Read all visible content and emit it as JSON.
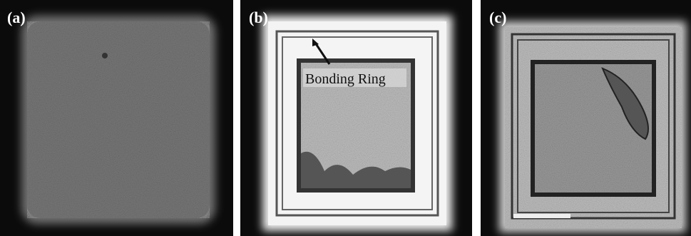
{
  "panels": [
    {
      "label": "(a)"
    },
    {
      "label": "(b)",
      "annotation": "Bonding Ring"
    },
    {
      "label": "(c)"
    }
  ]
}
